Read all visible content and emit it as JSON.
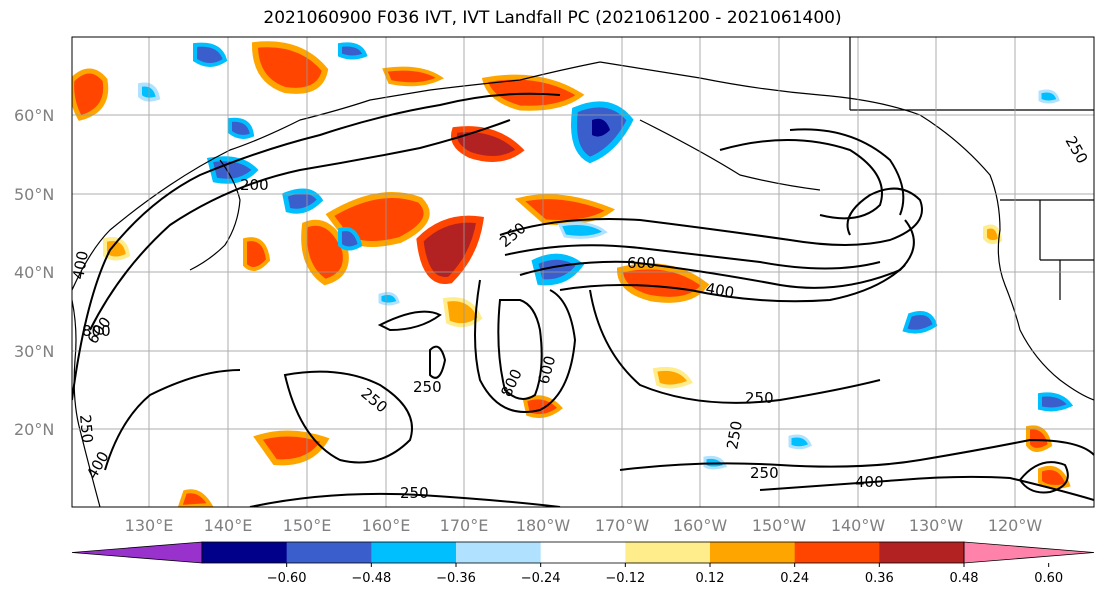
{
  "title": "2021060900 F036 IVT, IVT Landfall PC (2021061200 - 2021061400)",
  "lat_labels": [
    "60°N",
    "50°N",
    "40°N",
    "30°N",
    "20°N"
  ],
  "lon_labels": [
    "130°E",
    "140°E",
    "150°E",
    "160°E",
    "170°E",
    "180°W",
    "170°W",
    "160°W",
    "150°W",
    "140°W",
    "130°W",
    "120°W"
  ],
  "colorbar": {
    "colors": [
      "#9932cc",
      "#00008b",
      "#3a5fcd",
      "#00bfff",
      "#b0e2ff",
      "#ffffff",
      "#ffec8b",
      "#ffa500",
      "#ff4500",
      "#b22222",
      "#ff82ab"
    ],
    "tick_labels": [
      "−0.60",
      "−0.48",
      "−0.36",
      "−0.24",
      "−0.12",
      "0.12",
      "0.24",
      "0.36",
      "0.48",
      "0.60"
    ]
  },
  "contour_labels": {
    "c200": "200",
    "c250a": "250",
    "c250b": "250",
    "c250c": "250",
    "c250d": "250",
    "c250e": "250",
    "c250f": "250",
    "c250g": "250",
    "c250h": "250",
    "c250i": "250",
    "c600a": "600",
    "c600b": "600",
    "c600c": "600",
    "c400a": "400",
    "c400b": "400",
    "c400c": "400",
    "c400d": "400",
    "c800a": "800",
    "c800b": "800"
  }
}
